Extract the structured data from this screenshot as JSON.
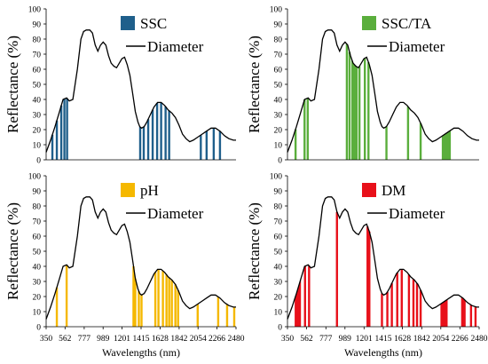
{
  "figure": {
    "xlabel": "Wavelengths (nm)",
    "x_tick_labels": [
      "350",
      "562",
      "777",
      "989",
      "1201",
      "1415",
      "1628",
      "1842",
      "2054",
      "2266",
      "2480"
    ]
  },
  "chart_data": [
    {
      "type": "line",
      "panel": "top-left",
      "ylabel": "Reflectance (%)",
      "ylim": [
        0,
        100
      ],
      "y_ticks": [
        0,
        10,
        20,
        30,
        40,
        50,
        60,
        70,
        80,
        90,
        100
      ],
      "xlim": [
        350,
        2480
      ],
      "grid": false,
      "legend_placement": "top-right",
      "legend": [
        {
          "label": "SSC",
          "marker": "box",
          "color": "#1f5f8b"
        },
        {
          "label": "Diameter",
          "marker": "line",
          "color": "#000000"
        }
      ],
      "band_color": "#1f5f8b",
      "bands_nm": [
        420,
        470,
        520,
        555,
        585,
        1405,
        1445,
        1495,
        1545,
        1595,
        1640,
        1690,
        1730,
        2085,
        2150,
        2230,
        2300
      ]
    },
    {
      "type": "line",
      "panel": "top-right",
      "ylabel": "Reflectance (%)",
      "ylim": [
        0,
        100
      ],
      "y_ticks": [
        0,
        10,
        20,
        30,
        40,
        50,
        60,
        70,
        80,
        90,
        100
      ],
      "xlim": [
        350,
        2480
      ],
      "grid": false,
      "legend_placement": "top-right",
      "legend": [
        {
          "label": "SSC/TA",
          "marker": "box",
          "color": "#5aae3c"
        },
        {
          "label": "Diameter",
          "marker": "line",
          "color": "#000000"
        }
      ],
      "band_color": "#5aae3c",
      "band_ranges_nm": [
        [
          1060,
          1130
        ],
        [
          2065,
          2165
        ]
      ],
      "bands_nm": [
        440,
        540,
        575,
        1010,
        1040,
        1150,
        1210,
        1250,
        1450,
        1690,
        1830
      ]
    },
    {
      "type": "line",
      "panel": "bottom-left",
      "ylabel": "Reflectance (%)",
      "ylim": [
        0,
        100
      ],
      "y_ticks": [
        0,
        10,
        20,
        30,
        40,
        50,
        60,
        70,
        80,
        90,
        100
      ],
      "xlim": [
        350,
        2480
      ],
      "grid": false,
      "legend_placement": "top-right",
      "legend": [
        {
          "label": "pH",
          "marker": "box",
          "color": "#f5b800"
        },
        {
          "label": "Diameter",
          "marker": "line",
          "color": "#000000"
        }
      ],
      "band_color": "#f5b800",
      "bands_nm": [
        470,
        580,
        1330,
        1350,
        1390,
        1420,
        1575,
        1610,
        1660,
        1700,
        1730,
        1760,
        1800,
        1830,
        2050,
        2280,
        2380,
        2460
      ]
    },
    {
      "type": "line",
      "panel": "bottom-right",
      "ylabel": "Reflectance (%)",
      "ylim": [
        0,
        100
      ],
      "y_ticks": [
        0,
        10,
        20,
        30,
        40,
        50,
        60,
        70,
        80,
        90,
        100
      ],
      "xlim": [
        350,
        2480
      ],
      "grid": false,
      "legend_placement": "top-right",
      "legend": [
        {
          "label": "DM",
          "marker": "box",
          "color": "#e8101a"
        },
        {
          "label": "Diameter",
          "marker": "line",
          "color": "#000000"
        }
      ],
      "band_color": "#e8101a",
      "band_ranges_nm": [
        [
          430,
          500
        ],
        [
          2050,
          2130
        ],
        [
          2280,
          2330
        ]
      ],
      "bands_nm": [
        545,
        590,
        900,
        1240,
        1260,
        1400,
        1460,
        1510,
        1570,
        1620,
        1700,
        1750,
        1790,
        1830,
        2390,
        2440
      ]
    }
  ],
  "diameter_curve": {
    "x": [
      350,
      400,
      450,
      500,
      540,
      580,
      610,
      650,
      700,
      740,
      770,
      800,
      840,
      870,
      900,
      930,
      960,
      990,
      1020,
      1050,
      1080,
      1110,
      1140,
      1170,
      1200,
      1230,
      1260,
      1290,
      1320,
      1350,
      1380,
      1400,
      1420,
      1450,
      1480,
      1520,
      1560,
      1600,
      1640,
      1680,
      1720,
      1760,
      1800,
      1840,
      1880,
      1920,
      1960,
      2000,
      2050,
      2100,
      2150,
      2200,
      2250,
      2300,
      2350,
      2400,
      2450,
      2480
    ],
    "y": [
      5,
      13,
      22,
      32,
      40,
      41,
      39,
      40,
      60,
      80,
      85,
      86,
      86,
      84,
      76,
      72,
      76,
      78,
      76,
      69,
      64,
      62,
      61,
      64,
      67,
      68,
      63,
      56,
      44,
      32,
      25,
      22,
      21,
      22,
      25,
      30,
      35,
      38,
      38,
      36,
      33,
      31,
      28,
      23,
      17,
      14,
      12,
      13,
      15,
      17,
      19,
      21,
      21,
      19,
      16,
      14,
      13,
      13
    ]
  }
}
